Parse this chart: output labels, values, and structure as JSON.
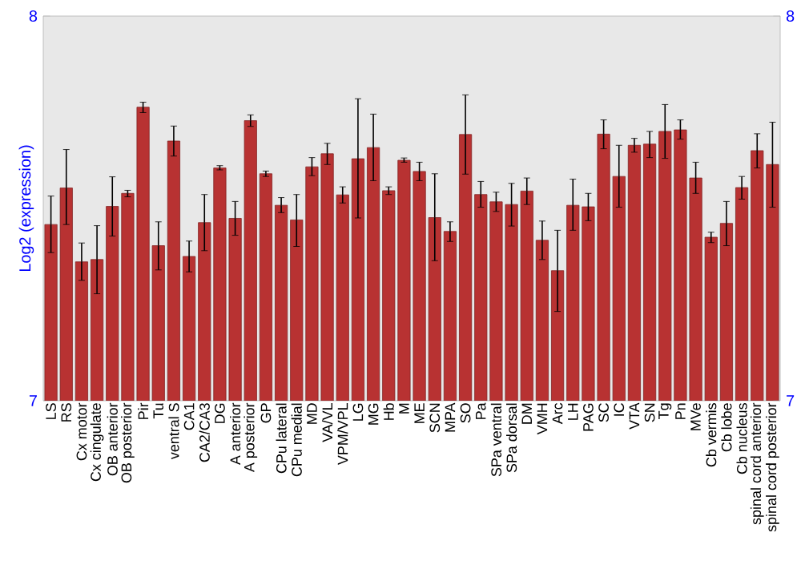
{
  "chart_data": {
    "type": "bar",
    "ylabel": "Log2 (expression)",
    "color": "#b83232",
    "categories": [
      "LS",
      "RS",
      "Cx motor",
      "Cx cingulate",
      "OB anterior",
      "OB posterior",
      "Pir",
      "Tu",
      "ventral S",
      "CA1",
      "CA2/CA3",
      "DG",
      "A anterior",
      "A posterior",
      "GP",
      "CPu lateral",
      "CPu medial",
      "MD",
      "VA/VL",
      "VPM/VPL",
      "LG",
      "MG",
      "Hb",
      "M",
      "ME",
      "SCN",
      "MPA",
      "SO",
      "Pa",
      "SPa ventral",
      "SPa dorsal",
      "DM",
      "VMH",
      "Arc",
      "LH",
      "PAG",
      "SC",
      "IC",
      "VTA",
      "SN",
      "Tg",
      "Pn",
      "MVe",
      "Cb vermis",
      "Cb lobe",
      "Cb nucleus",
      "spinal cord anterior",
      "spinal cord posterior"
    ],
    "values": [
      7.458,
      7.553,
      7.361,
      7.367,
      7.505,
      7.539,
      7.763,
      7.403,
      7.675,
      7.375,
      7.463,
      7.605,
      7.474,
      7.728,
      7.59,
      7.508,
      7.47,
      7.608,
      7.642,
      7.535,
      7.629,
      7.658,
      7.546,
      7.625,
      7.596,
      7.476,
      7.44,
      7.692,
      7.536,
      7.517,
      7.51,
      7.545,
      7.417,
      7.338,
      7.508,
      7.504,
      7.693,
      7.583,
      7.664,
      7.667,
      7.7,
      7.704,
      7.579,
      7.425,
      7.461,
      7.554,
      7.65,
      7.614
    ],
    "errors": [
      [
        7.385,
        7.532
      ],
      [
        7.458,
        7.653
      ],
      [
        7.313,
        7.41
      ],
      [
        7.278,
        7.455
      ],
      [
        7.428,
        7.582
      ],
      [
        7.53,
        7.547
      ],
      [
        7.749,
        7.776
      ],
      [
        7.34,
        7.465
      ],
      [
        7.636,
        7.714
      ],
      [
        7.335,
        7.415
      ],
      [
        7.39,
        7.536
      ],
      [
        7.6,
        7.611
      ],
      [
        7.43,
        7.518
      ],
      [
        7.713,
        7.743
      ],
      [
        7.583,
        7.597
      ],
      [
        7.489,
        7.528
      ],
      [
        7.401,
        7.536
      ],
      [
        7.585,
        7.632
      ],
      [
        7.614,
        7.669
      ],
      [
        7.514,
        7.556
      ],
      [
        7.475,
        7.785
      ],
      [
        7.572,
        7.745
      ],
      [
        7.536,
        7.556
      ],
      [
        7.62,
        7.631
      ],
      [
        7.572,
        7.62
      ],
      [
        7.364,
        7.59
      ],
      [
        7.414,
        7.465
      ],
      [
        7.589,
        7.795
      ],
      [
        7.503,
        7.57
      ],
      [
        7.492,
        7.542
      ],
      [
        7.454,
        7.565
      ],
      [
        7.51,
        7.579
      ],
      [
        7.367,
        7.467
      ],
      [
        7.232,
        7.443
      ],
      [
        7.443,
        7.576
      ],
      [
        7.468,
        7.539
      ],
      [
        7.655,
        7.73
      ],
      [
        7.503,
        7.664
      ],
      [
        7.646,
        7.682
      ],
      [
        7.632,
        7.7
      ],
      [
        7.63,
        7.77
      ],
      [
        7.68,
        7.73
      ],
      [
        7.539,
        7.62
      ],
      [
        7.411,
        7.438
      ],
      [
        7.403,
        7.518
      ],
      [
        7.524,
        7.583
      ],
      [
        7.605,
        7.694
      ],
      [
        7.503,
        7.724
      ]
    ],
    "ylim": [
      7,
      8
    ],
    "yticks": [
      7,
      8
    ],
    "y2lim": [
      7,
      8
    ],
    "y2ticks": [
      7,
      8
    ]
  }
}
